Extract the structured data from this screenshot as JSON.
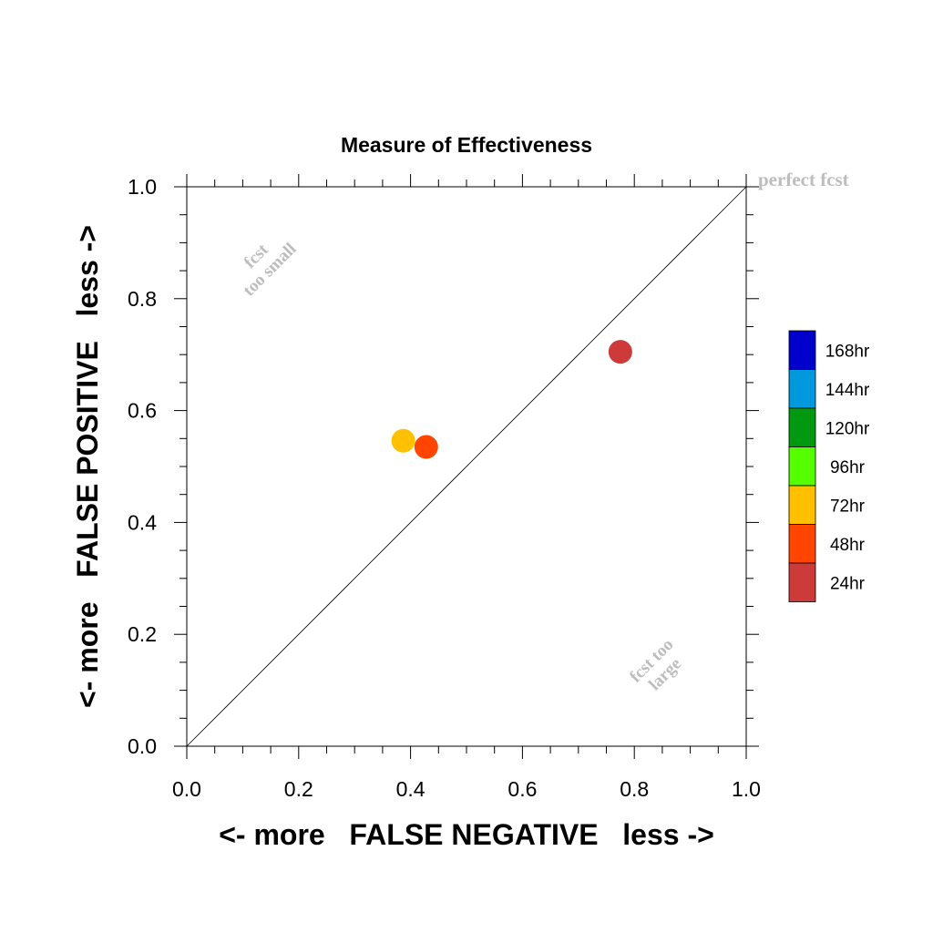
{
  "chart_data": {
    "type": "scatter",
    "title": "Measure of Effectiveness",
    "xlabel": "<- more   FALSE NEGATIVE   less ->",
    "ylabel": "<- more   FALSE POSITIVE   less ->",
    "xlim": [
      0.0,
      1.0
    ],
    "ylim": [
      0.0,
      1.0
    ],
    "x_ticks": [
      "0.0",
      "0.2",
      "0.4",
      "0.6",
      "0.8",
      "1.0"
    ],
    "y_ticks": [
      "0.0",
      "0.2",
      "0.4",
      "0.6",
      "0.8",
      "1.0"
    ],
    "grid": false,
    "reference_line": "diagonal y = x",
    "annotations": {
      "perfect": "perfect fcst",
      "too_small_line1": "fcst",
      "too_small_line2": "too small",
      "too_large_line1": "fcst too",
      "too_large_line2": "large"
    },
    "points": [
      {
        "label": "24hr",
        "x": 0.775,
        "y": 0.705,
        "color": "#cc3a3a"
      },
      {
        "label": "48hr",
        "x": 0.428,
        "y": 0.535,
        "color": "#ff4500"
      },
      {
        "label": "72hr",
        "x": 0.387,
        "y": 0.546,
        "color": "#ffc000"
      }
    ],
    "legend": {
      "placement": "right",
      "entries": [
        {
          "label": "168hr",
          "color": "#0000cc"
        },
        {
          "label": "144hr",
          "color": "#0099dd"
        },
        {
          "label": "120hr",
          "color": "#009910"
        },
        {
          "label": "96hr",
          "color": "#55ff00"
        },
        {
          "label": "72hr",
          "color": "#ffc000"
        },
        {
          "label": "48hr",
          "color": "#ff4500"
        },
        {
          "label": "24hr",
          "color": "#cc3a3a"
        }
      ]
    }
  }
}
